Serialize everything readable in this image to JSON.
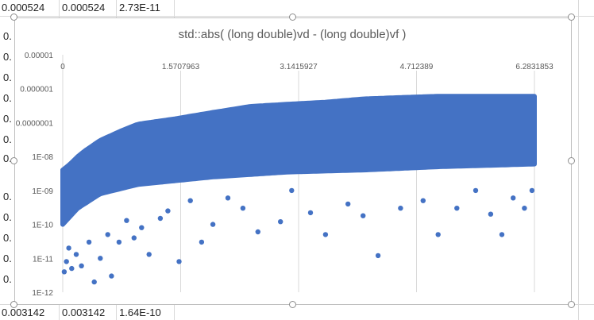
{
  "sheet": {
    "top_row": [
      "0.000524",
      "0.000524",
      "2.73E-11"
    ],
    "bottom_row": [
      "0.003142",
      "0.003142",
      "1.64E-10"
    ],
    "left_col_digits": [
      "0.",
      "0.",
      "0.",
      "0.",
      "0.",
      "0.",
      "0.",
      "0.",
      "0.",
      "0.",
      "0.",
      "0."
    ]
  },
  "chart_data": {
    "type": "scatter",
    "title": "std::abs( (long double)vd - (long double)vf )",
    "xlabel": "",
    "ylabel": "",
    "x_ticks": [
      "0",
      "1.5707963",
      "3.1415927",
      "4.712389",
      "6.2831853"
    ],
    "x_tick_values": [
      0,
      1.5707963,
      3.1415927,
      4.712389,
      6.2831853
    ],
    "y_ticks": [
      "0.00001",
      "0.000001",
      "0.0000001",
      "1E-08",
      "1E-09",
      "1E-10",
      "1E-11",
      "1E-12"
    ],
    "y_tick_values": [
      1e-05,
      1e-06,
      1e-07,
      1e-08,
      1e-09,
      1e-10,
      1e-11,
      1e-12
    ],
    "xlim": [
      0,
      6.2831853
    ],
    "ylim": [
      1e-12,
      1e-05
    ],
    "y_scale": "log",
    "x_axis_position": "top",
    "grid": "vertical",
    "marker_color": "#4472C4",
    "series": [
      {
        "dense_upper_envelope": [
          [
            0,
            4e-09
          ],
          [
            0.1,
            6e-09
          ],
          [
            0.2,
            1e-08
          ],
          [
            0.3,
            1.5e-08
          ],
          [
            0.5,
            3e-08
          ],
          [
            0.8,
            6e-08
          ],
          [
            1.0,
            9e-08
          ],
          [
            1.5,
            1.3e-07
          ],
          [
            2.0,
            2e-07
          ],
          [
            2.5,
            3e-07
          ],
          [
            3.0,
            3.5e-07
          ],
          [
            3.5,
            4e-07
          ],
          [
            4.0,
            5e-07
          ],
          [
            4.5,
            5.5e-07
          ],
          [
            5.0,
            6e-07
          ],
          [
            6.2831853,
            6e-07
          ]
        ],
        "dense_lower_envelope": [
          [
            0,
            1e-10
          ],
          [
            0.2,
            3e-10
          ],
          [
            0.5,
            8e-10
          ],
          [
            1.0,
            1.5e-09
          ],
          [
            2.0,
            2.5e-09
          ],
          [
            3.0,
            3.5e-09
          ],
          [
            4.0,
            4e-09
          ],
          [
            5.0,
            5e-09
          ],
          [
            6.2831853,
            6e-09
          ]
        ],
        "outliers": [
          [
            0.02,
            4e-12
          ],
          [
            0.05,
            8e-12
          ],
          [
            0.08,
            2e-11
          ],
          [
            0.12,
            5e-12
          ],
          [
            0.18,
            1.3e-11
          ],
          [
            0.25,
            6e-12
          ],
          [
            0.35,
            3e-11
          ],
          [
            0.42,
            2e-12
          ],
          [
            0.5,
            1e-11
          ],
          [
            0.6,
            5e-11
          ],
          [
            0.65,
            3e-12
          ],
          [
            0.75,
            3e-11
          ],
          [
            0.85,
            1.3e-10
          ],
          [
            0.95,
            4e-11
          ],
          [
            1.05,
            8e-11
          ],
          [
            1.15,
            1.3e-11
          ],
          [
            1.3,
            1.5e-10
          ],
          [
            1.4,
            2.5e-10
          ],
          [
            1.55,
            8e-12
          ],
          [
            1.7,
            5e-10
          ],
          [
            1.85,
            3e-11
          ],
          [
            2.0,
            1e-10
          ],
          [
            2.2,
            6e-10
          ],
          [
            2.4,
            3e-10
          ],
          [
            2.6,
            6e-11
          ],
          [
            2.9,
            1.2e-10
          ],
          [
            3.05,
            1e-09
          ],
          [
            3.3,
            2.2e-10
          ],
          [
            3.5,
            5e-11
          ],
          [
            3.8,
            4e-10
          ],
          [
            4.0,
            1.8e-10
          ],
          [
            4.2,
            1.2e-11
          ],
          [
            4.5,
            3e-10
          ],
          [
            4.8,
            5e-10
          ],
          [
            5.0,
            5e-11
          ],
          [
            5.25,
            3e-10
          ],
          [
            5.5,
            1e-09
          ],
          [
            5.7,
            2e-10
          ],
          [
            5.85,
            5e-11
          ],
          [
            6.0,
            6e-10
          ],
          [
            6.15,
            3e-10
          ],
          [
            6.25,
            1e-09
          ]
        ]
      }
    ]
  }
}
